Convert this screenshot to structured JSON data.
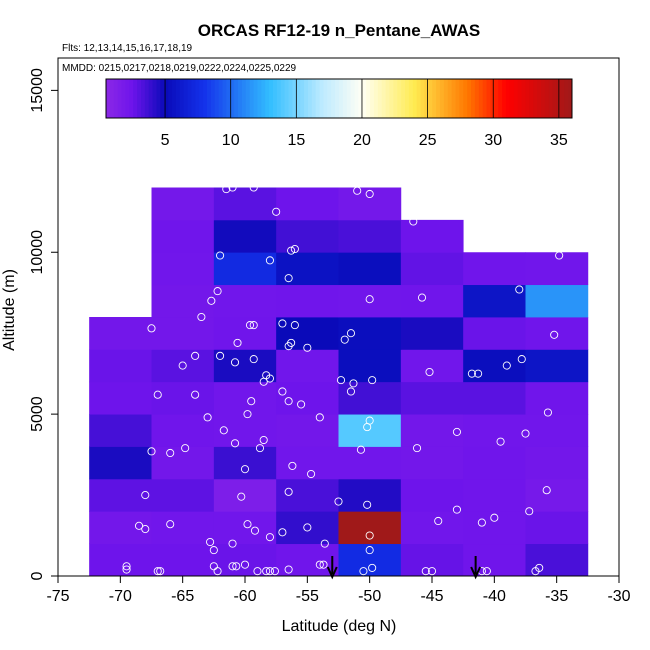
{
  "chart_data": {
    "type": "heatmap",
    "title": "ORCAS RF12-19 n_Pentane_AWAS",
    "flights_note": "Flts: 12,13,14,15,16,17,18,19",
    "dates_note": "MMDD: 0215,0217,0218,0219,0222,0224,0225,0229",
    "xlabel": "Latitude (deg N)",
    "ylabel": "Altitude (m)",
    "xlim": [
      -75,
      -30
    ],
    "ylim": [
      0,
      16000
    ],
    "x_ticks": [
      -75,
      -70,
      -65,
      -60,
      -55,
      -50,
      -45,
      -40,
      -35,
      -30
    ],
    "x_tick_labels": [
      "-75",
      "-70",
      "-65",
      "-60",
      "-55",
      "-50",
      "-45",
      "-40",
      "-35",
      "-30"
    ],
    "y_ticks": [
      0,
      5000,
      10000,
      15000
    ],
    "y_tick_labels": [
      "0",
      "5000",
      "10000",
      "15000"
    ],
    "colorbar": {
      "min": 0.5,
      "max": 36,
      "ticks": [
        5,
        10,
        15,
        20,
        25,
        30,
        35
      ],
      "tick_labels": [
        "5",
        "10",
        "15",
        "20",
        "25",
        "30",
        "35"
      ]
    },
    "bin_width_deg": 5,
    "bin_height_m": 1000,
    "cells": [
      {
        "lon": -70,
        "alt": 0,
        "v": 2.5
      },
      {
        "lon": -65,
        "alt": 0,
        "v": 2.5
      },
      {
        "lon": -60,
        "alt": 0,
        "v": 2.6
      },
      {
        "lon": -55,
        "alt": 0,
        "v": 2.4
      },
      {
        "lon": -50,
        "alt": 0,
        "v": 7.5
      },
      {
        "lon": -45,
        "alt": 0,
        "v": 2.7
      },
      {
        "lon": -40,
        "alt": 0,
        "v": 2.4
      },
      {
        "lon": -35,
        "alt": 0,
        "v": 3.4
      },
      {
        "lon": -70,
        "alt": 1000,
        "v": 2.2
      },
      {
        "lon": -65,
        "alt": 1000,
        "v": 2.3
      },
      {
        "lon": -60,
        "alt": 1000,
        "v": 2.3
      },
      {
        "lon": -55,
        "alt": 1000,
        "v": 4.0
      },
      {
        "lon": -50,
        "alt": 1000,
        "v": 36.0
      },
      {
        "lon": -45,
        "alt": 1000,
        "v": 2.3
      },
      {
        "lon": -40,
        "alt": 1000,
        "v": 2.4
      },
      {
        "lon": -35,
        "alt": 1000,
        "v": 2.6
      },
      {
        "lon": -70,
        "alt": 2000,
        "v": 2.9
      },
      {
        "lon": -65,
        "alt": 2000,
        "v": 2.9
      },
      {
        "lon": -60,
        "alt": 2000,
        "v": 1.5
      },
      {
        "lon": -55,
        "alt": 2000,
        "v": 3.4
      },
      {
        "lon": -50,
        "alt": 2000,
        "v": 4.4
      },
      {
        "lon": -45,
        "alt": 2000,
        "v": 2.5
      },
      {
        "lon": -40,
        "alt": 2000,
        "v": 2.4
      },
      {
        "lon": -35,
        "alt": 2000,
        "v": 2.0
      },
      {
        "lon": -70,
        "alt": 3000,
        "v": 4.6
      },
      {
        "lon": -65,
        "alt": 3000,
        "v": 2.2
      },
      {
        "lon": -60,
        "alt": 3000,
        "v": 3.8
      },
      {
        "lon": -55,
        "alt": 3000,
        "v": 2.3
      },
      {
        "lon": -50,
        "alt": 3000,
        "v": 2.3
      },
      {
        "lon": -45,
        "alt": 3000,
        "v": 2.2
      },
      {
        "lon": -40,
        "alt": 3000,
        "v": 2.4
      },
      {
        "lon": -35,
        "alt": 3000,
        "v": 2.2
      },
      {
        "lon": -70,
        "alt": 4000,
        "v": 3.5
      },
      {
        "lon": -65,
        "alt": 4000,
        "v": 2.4
      },
      {
        "lon": -60,
        "alt": 4000,
        "v": 2.3
      },
      {
        "lon": -55,
        "alt": 4000,
        "v": 2.2
      },
      {
        "lon": -50,
        "alt": 4000,
        "v": 14.0
      },
      {
        "lon": -45,
        "alt": 4000,
        "v": 2.2
      },
      {
        "lon": -40,
        "alt": 4000,
        "v": 2.3
      },
      {
        "lon": -35,
        "alt": 4000,
        "v": 2.3
      },
      {
        "lon": -70,
        "alt": 5000,
        "v": 2.5
      },
      {
        "lon": -65,
        "alt": 5000,
        "v": 2.6
      },
      {
        "lon": -60,
        "alt": 5000,
        "v": 2.3
      },
      {
        "lon": -55,
        "alt": 5000,
        "v": 2.5
      },
      {
        "lon": -50,
        "alt": 5000,
        "v": 3.6
      },
      {
        "lon": -45,
        "alt": 5000,
        "v": 3.0
      },
      {
        "lon": -40,
        "alt": 5000,
        "v": 3.0
      },
      {
        "lon": -35,
        "alt": 5000,
        "v": 2.4
      },
      {
        "lon": -70,
        "alt": 6000,
        "v": 2.6
      },
      {
        "lon": -65,
        "alt": 6000,
        "v": 3.0
      },
      {
        "lon": -60,
        "alt": 6000,
        "v": 4.6
      },
      {
        "lon": -55,
        "alt": 6000,
        "v": 2.3
      },
      {
        "lon": -50,
        "alt": 6000,
        "v": 5.3
      },
      {
        "lon": -45,
        "alt": 6000,
        "v": 2.3
      },
      {
        "lon": -40,
        "alt": 6000,
        "v": 5.3
      },
      {
        "lon": -35,
        "alt": 6000,
        "v": 5.8
      },
      {
        "lon": -70,
        "alt": 7000,
        "v": 2.2
      },
      {
        "lon": -65,
        "alt": 7000,
        "v": 2.2
      },
      {
        "lon": -60,
        "alt": 7000,
        "v": 2.4
      },
      {
        "lon": -55,
        "alt": 7000,
        "v": 5.0
      },
      {
        "lon": -50,
        "alt": 7000,
        "v": 5.3
      },
      {
        "lon": -45,
        "alt": 7000,
        "v": 4.6
      },
      {
        "lon": -40,
        "alt": 7000,
        "v": 2.6
      },
      {
        "lon": -35,
        "alt": 7000,
        "v": 2.4
      },
      {
        "lon": -65,
        "alt": 8000,
        "v": 2.2
      },
      {
        "lon": -60,
        "alt": 8000,
        "v": 2.3
      },
      {
        "lon": -55,
        "alt": 8000,
        "v": 2.4
      },
      {
        "lon": -50,
        "alt": 8000,
        "v": 2.3
      },
      {
        "lon": -45,
        "alt": 8000,
        "v": 2.4
      },
      {
        "lon": -40,
        "alt": 8000,
        "v": 5.8
      },
      {
        "lon": -35,
        "alt": 8000,
        "v": 11.5
      },
      {
        "lon": -65,
        "alt": 9000,
        "v": 2.3
      },
      {
        "lon": -60,
        "alt": 9000,
        "v": 7.4
      },
      {
        "lon": -55,
        "alt": 9000,
        "v": 5.6
      },
      {
        "lon": -50,
        "alt": 9000,
        "v": 5.3
      },
      {
        "lon": -45,
        "alt": 9000,
        "v": 2.8
      },
      {
        "lon": -40,
        "alt": 9000,
        "v": 2.4
      },
      {
        "lon": -35,
        "alt": 9000,
        "v": 2.3
      },
      {
        "lon": -65,
        "alt": 10000,
        "v": 2.4
      },
      {
        "lon": -60,
        "alt": 10000,
        "v": 4.8
      },
      {
        "lon": -55,
        "alt": 10000,
        "v": 3.6
      },
      {
        "lon": -50,
        "alt": 10000,
        "v": 3.4
      },
      {
        "lon": -45,
        "alt": 10000,
        "v": 2.5
      },
      {
        "lon": -65,
        "alt": 11000,
        "v": 2.1
      },
      {
        "lon": -60,
        "alt": 11000,
        "v": 3.0
      },
      {
        "lon": -55,
        "alt": 11000,
        "v": 2.5
      },
      {
        "lon": -50,
        "alt": 11000,
        "v": 2.1
      }
    ],
    "samples": [
      {
        "lat": -69.5,
        "alt": 200
      },
      {
        "lat": -69.5,
        "alt": 300
      },
      {
        "lat": -67.0,
        "alt": 150
      },
      {
        "lat": -66.8,
        "alt": 150
      },
      {
        "lat": -62.5,
        "alt": 300
      },
      {
        "lat": -62.2,
        "alt": 150
      },
      {
        "lat": -61.0,
        "alt": 300
      },
      {
        "lat": -60.7,
        "alt": 300
      },
      {
        "lat": -60.0,
        "alt": 350
      },
      {
        "lat": -59.0,
        "alt": 150
      },
      {
        "lat": -58.3,
        "alt": 150
      },
      {
        "lat": -58.0,
        "alt": 150
      },
      {
        "lat": -57.6,
        "alt": 150
      },
      {
        "lat": -56.5,
        "alt": 200
      },
      {
        "lat": -54.0,
        "alt": 350
      },
      {
        "lat": -53.7,
        "alt": 350
      },
      {
        "lat": -50.5,
        "alt": 150
      },
      {
        "lat": -49.8,
        "alt": 250
      },
      {
        "lat": -45.5,
        "alt": 150
      },
      {
        "lat": -45.0,
        "alt": 150
      },
      {
        "lat": -41.0,
        "alt": 150
      },
      {
        "lat": -40.6,
        "alt": 150
      },
      {
        "lat": -36.7,
        "alt": 150
      },
      {
        "lat": -36.4,
        "alt": 250
      },
      {
        "lat": -62.8,
        "alt": 1050
      },
      {
        "lat": -62.5,
        "alt": 800
      },
      {
        "lat": -61.0,
        "alt": 1000
      },
      {
        "lat": -59.8,
        "alt": 1600
      },
      {
        "lat": -59.2,
        "alt": 1400
      },
      {
        "lat": -58.0,
        "alt": 1200
      },
      {
        "lat": -57.0,
        "alt": 1350
      },
      {
        "lat": -55.0,
        "alt": 1500
      },
      {
        "lat": -53.6,
        "alt": 1000
      },
      {
        "lat": -50.0,
        "alt": 800
      },
      {
        "lat": -50.0,
        "alt": 1250
      },
      {
        "lat": -44.5,
        "alt": 1700
      },
      {
        "lat": -41.0,
        "alt": 1650
      },
      {
        "lat": -40.0,
        "alt": 1800
      },
      {
        "lat": -37.2,
        "alt": 2000
      },
      {
        "lat": -68.0,
        "alt": 1450
      },
      {
        "lat": -68.5,
        "alt": 1550
      },
      {
        "lat": -66.0,
        "alt": 1600
      },
      {
        "lat": -68.0,
        "alt": 2500
      },
      {
        "lat": -60.3,
        "alt": 2450
      },
      {
        "lat": -56.5,
        "alt": 2600
      },
      {
        "lat": -52.5,
        "alt": 2300
      },
      {
        "lat": -50.2,
        "alt": 2200
      },
      {
        "lat": -43.0,
        "alt": 2050
      },
      {
        "lat": -35.8,
        "alt": 2650
      },
      {
        "lat": -67.5,
        "alt": 3850
      },
      {
        "lat": -66.0,
        "alt": 3800
      },
      {
        "lat": -60.0,
        "alt": 3300
      },
      {
        "lat": -58.8,
        "alt": 3950
      },
      {
        "lat": -56.2,
        "alt": 3400
      },
      {
        "lat": -54.7,
        "alt": 3150
      },
      {
        "lat": -50.7,
        "alt": 3900
      },
      {
        "lat": -46.2,
        "alt": 3950
      },
      {
        "lat": -63.0,
        "alt": 4900
      },
      {
        "lat": -64.8,
        "alt": 3950
      },
      {
        "lat": -61.7,
        "alt": 4500
      },
      {
        "lat": -60.8,
        "alt": 4100
      },
      {
        "lat": -58.5,
        "alt": 4200
      },
      {
        "lat": -54.0,
        "alt": 4900
      },
      {
        "lat": -50.0,
        "alt": 4800
      },
      {
        "lat": -50.2,
        "alt": 4600
      },
      {
        "lat": -43.0,
        "alt": 4450
      },
      {
        "lat": -39.5,
        "alt": 4150
      },
      {
        "lat": -37.5,
        "alt": 4400
      },
      {
        "lat": -35.7,
        "alt": 5050
      },
      {
        "lat": -67.0,
        "alt": 5600
      },
      {
        "lat": -64.0,
        "alt": 5600
      },
      {
        "lat": -59.8,
        "alt": 5000
      },
      {
        "lat": -59.5,
        "alt": 5400
      },
      {
        "lat": -57.0,
        "alt": 5700
      },
      {
        "lat": -56.5,
        "alt": 5400
      },
      {
        "lat": -55.5,
        "alt": 5300
      },
      {
        "lat": -51.5,
        "alt": 5700
      },
      {
        "lat": -51.3,
        "alt": 5950
      },
      {
        "lat": -52.3,
        "alt": 6050
      },
      {
        "lat": -49.8,
        "alt": 6050
      },
      {
        "lat": -45.2,
        "alt": 6300
      },
      {
        "lat": -41.8,
        "alt": 6250
      },
      {
        "lat": -41.3,
        "alt": 6250
      },
      {
        "lat": -67.5,
        "alt": 7650
      },
      {
        "lat": -65.0,
        "alt": 6500
      },
      {
        "lat": -64.0,
        "alt": 6800
      },
      {
        "lat": -62.0,
        "alt": 6800
      },
      {
        "lat": -60.8,
        "alt": 6600
      },
      {
        "lat": -60.6,
        "alt": 7200
      },
      {
        "lat": -59.3,
        "alt": 6700
      },
      {
        "lat": -58.5,
        "alt": 6000
      },
      {
        "lat": -58.0,
        "alt": 6100
      },
      {
        "lat": -58.3,
        "alt": 6200
      },
      {
        "lat": -56.5,
        "alt": 7100
      },
      {
        "lat": -56.3,
        "alt": 7200
      },
      {
        "lat": -55.0,
        "alt": 7050
      },
      {
        "lat": -52.0,
        "alt": 7300
      },
      {
        "lat": -51.5,
        "alt": 7500
      },
      {
        "lat": -39.0,
        "alt": 6500
      },
      {
        "lat": -37.8,
        "alt": 6700
      },
      {
        "lat": -35.2,
        "alt": 7450
      },
      {
        "lat": -63.5,
        "alt": 8000
      },
      {
        "lat": -62.7,
        "alt": 8500
      },
      {
        "lat": -62.2,
        "alt": 8800
      },
      {
        "lat": -59.6,
        "alt": 7750
      },
      {
        "lat": -59.3,
        "alt": 7750
      },
      {
        "lat": -57.0,
        "alt": 7800
      },
      {
        "lat": -56.0,
        "alt": 7750
      },
      {
        "lat": -50.0,
        "alt": 8550
      },
      {
        "lat": -45.8,
        "alt": 8600
      },
      {
        "lat": -38.0,
        "alt": 8850
      },
      {
        "lat": -62.0,
        "alt": 9900
      },
      {
        "lat": -58.0,
        "alt": 9750
      },
      {
        "lat": -56.5,
        "alt": 9200
      },
      {
        "lat": -56.3,
        "alt": 10050
      },
      {
        "lat": -56.0,
        "alt": 10100
      },
      {
        "lat": -34.8,
        "alt": 9900
      },
      {
        "lat": -61.5,
        "alt": 11950
      },
      {
        "lat": -61.0,
        "alt": 12000
      },
      {
        "lat": -59.3,
        "alt": 12000
      },
      {
        "lat": -57.5,
        "alt": 11250
      },
      {
        "lat": -51.0,
        "alt": 11900
      },
      {
        "lat": -50.0,
        "alt": 11800
      },
      {
        "lat": -46.5,
        "alt": 10950
      }
    ],
    "arrows": [
      {
        "lat": -53,
        "label": ""
      },
      {
        "lat": -41.5,
        "label": ""
      }
    ]
  }
}
